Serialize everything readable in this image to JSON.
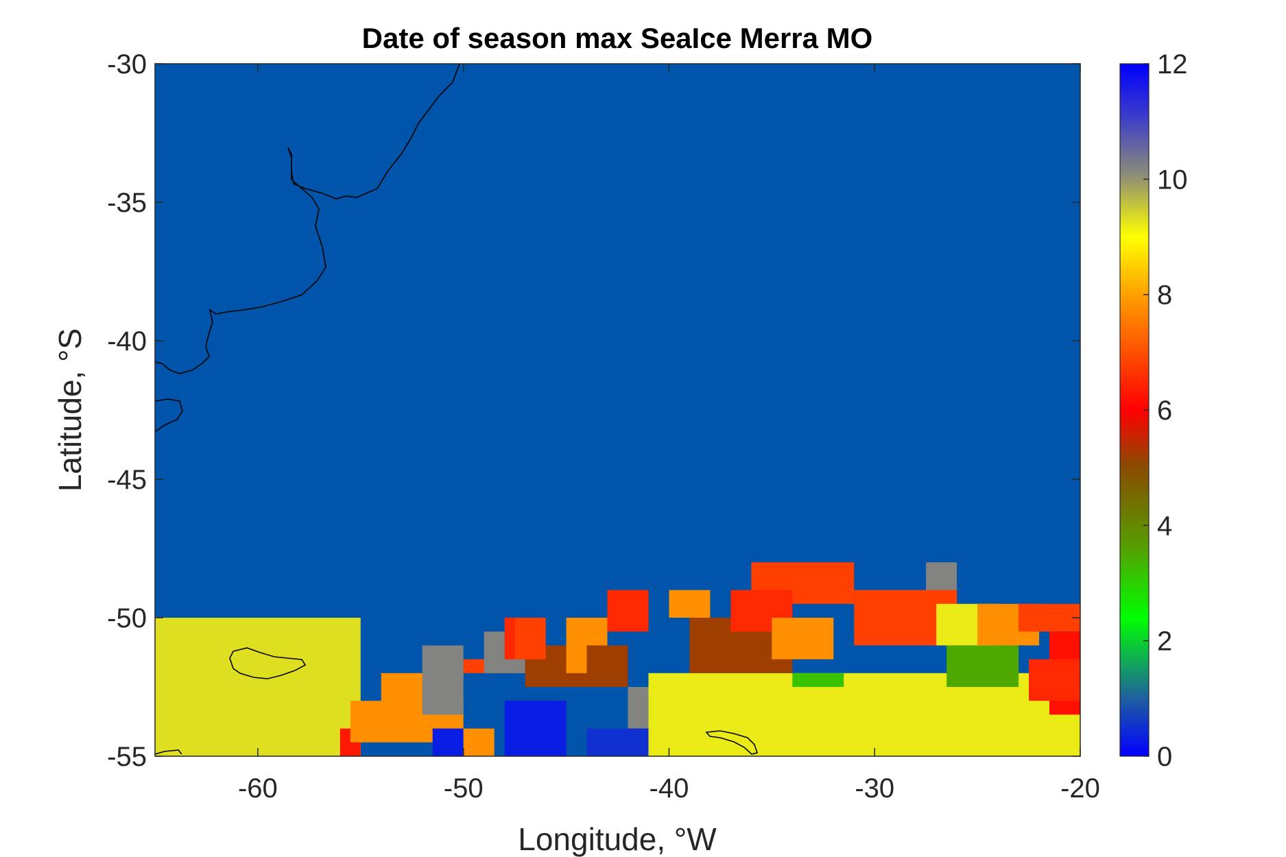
{
  "chart_data": {
    "type": "heatmap",
    "title": "Date of season max SeaIce Merra MO",
    "xlabel": "Longitude, °W",
    "ylabel": "Latitude, °S",
    "xlim": [
      -65,
      -20
    ],
    "ylim": [
      -55,
      -30
    ],
    "xticks": [
      -60,
      -50,
      -40,
      -30,
      -20
    ],
    "yticks": [
      -30,
      -35,
      -40,
      -45,
      -50,
      -55
    ],
    "colorbar": {
      "min": 0,
      "max": 12,
      "ticks": [
        0,
        2,
        4,
        6,
        8,
        10,
        12
      ],
      "stops": [
        "#0000ff",
        "#1f5fa0",
        "#00ff00",
        "#55a000",
        "#8b4a00",
        "#ff0000",
        "#ff9900",
        "#ffff00",
        "#8c8c78",
        "#4040c8",
        "#0000ff"
      ]
    },
    "background_value": 1.5,
    "background_color": "#0055aa",
    "cells": [
      [
        -65,
        -55,
        -55,
        -50,
        9.3
      ],
      [
        -56,
        -55,
        -55,
        -54,
        6.3
      ],
      [
        -55.5,
        -50,
        -54.5,
        -53,
        7.8
      ],
      [
        -54,
        -51.5,
        -53.5,
        -52,
        7.8
      ],
      [
        -52,
        -50,
        -53.5,
        -51,
        10.2
      ],
      [
        -51.5,
        -50,
        -55,
        -54,
        0.3
      ],
      [
        -50,
        -48.5,
        -55,
        -54,
        7.8
      ],
      [
        -50,
        -47,
        -52,
        -51.5,
        6.8
      ],
      [
        -49,
        -47,
        -52,
        -50.5,
        10.2
      ],
      [
        -48,
        -45,
        -55,
        -53,
        0.3
      ],
      [
        -47,
        -44,
        -52.5,
        -51,
        5.2
      ],
      [
        -48,
        -46,
        -51.5,
        -50,
        6.5
      ],
      [
        -47.5,
        -46,
        -51.5,
        -50,
        6.8
      ],
      [
        -45,
        -43,
        -52,
        -50,
        7.8
      ],
      [
        -44,
        -42,
        -52.5,
        -51,
        5.2
      ],
      [
        -43,
        -41,
        -50.5,
        -49,
        6.5
      ],
      [
        -40,
        -38,
        -50,
        -49,
        7.8
      ],
      [
        -42,
        -39,
        -54,
        -52.5,
        10.2
      ],
      [
        -44,
        -41,
        -55,
        -54,
        0.5
      ],
      [
        -41,
        -20,
        -55,
        -52,
        9.2
      ],
      [
        -39,
        -34,
        -52,
        -50,
        5.2
      ],
      [
        -36,
        -31,
        -49.5,
        -48,
        6.8
      ],
      [
        -37,
        -34,
        -50.5,
        -49,
        6.5
      ],
      [
        -35,
        -32,
        -51.5,
        -50,
        7.8
      ],
      [
        -34,
        -31.5,
        -52.5,
        -52,
        3.2
      ],
      [
        -31,
        -26,
        -51,
        -49,
        6.8
      ],
      [
        -27.5,
        -26,
        -49,
        -48,
        10.2
      ],
      [
        -27,
        -24,
        -51,
        -49.5,
        9.2
      ],
      [
        -26.5,
        -23,
        -52.5,
        -51,
        3.5
      ],
      [
        -25,
        -22,
        -51,
        -49.5,
        7.8
      ],
      [
        -23,
        -20,
        -50.5,
        -49.5,
        6.8
      ],
      [
        -21.5,
        -20,
        -53.5,
        -50.5,
        6.2
      ],
      [
        -22.5,
        -20,
        -53,
        -51.5,
        6.5
      ]
    ]
  }
}
